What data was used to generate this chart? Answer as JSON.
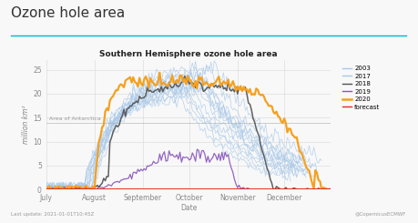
{
  "title_main": "Ozone hole area",
  "subtitle": "Southern Hemisphere ozone hole area",
  "xlabel": "Date",
  "ylabel": "million km²",
  "antarctica_label": "Area of Antarctica",
  "antarctica_level": 14.0,
  "ylim": [
    0,
    27
  ],
  "yticks": [
    0,
    5,
    10,
    15,
    20,
    25
  ],
  "x_months": [
    "July",
    "August",
    "September",
    "October",
    "November",
    "December"
  ],
  "background_color": "#f8f8f8",
  "plot_bg": "#f8f8f8",
  "footer_left": "Last update: 2021-01-01T10:45Z",
  "footer_right": "@CopernicusECMWF",
  "legend_entries": [
    "2003",
    "2017",
    "2018",
    "2019",
    "2020",
    "forecast"
  ],
  "legend_colors": [
    "#a8c8e8",
    "#a8c8e8",
    "#505050",
    "#8855bb",
    "#f5a020",
    "#e03020"
  ],
  "line_2020_color": "#f5a020",
  "line_2018_color": "#505050",
  "line_2019_color": "#8855bb",
  "line_historic_color": "#a8c8e8",
  "line_forecast_color": "#e03020",
  "accent_color": "#00b8d0",
  "grid_color": "#dddddd",
  "tick_color": "#888888",
  "title_color": "#333333"
}
